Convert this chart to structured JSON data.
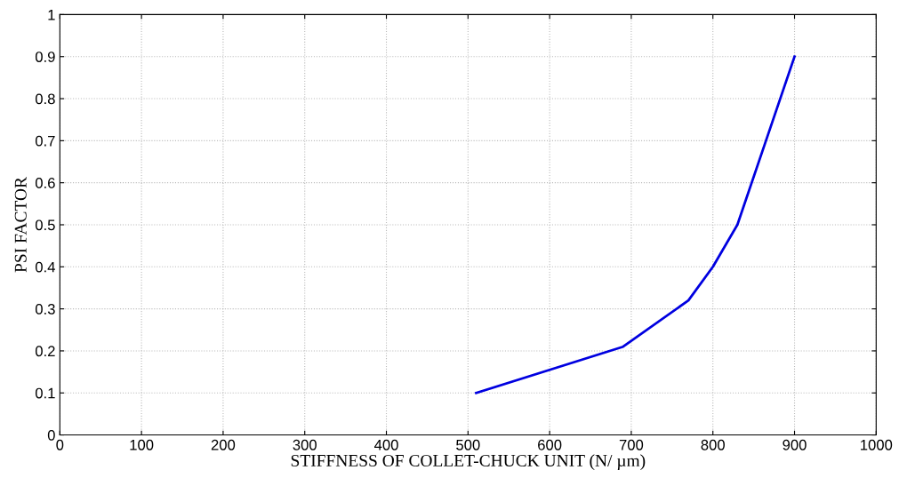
{
  "chart_data": {
    "type": "line",
    "xlabel": "STIFFNESS OF COLLET-CHUCK UNIT (N/ µm)",
    "ylabel": "PSI FACTOR",
    "series": [
      {
        "color": "#0000e0",
        "x": [
          510,
          690,
          770,
          800,
          830,
          865,
          900
        ],
        "values": [
          0.1,
          0.21,
          0.32,
          0.4,
          0.5,
          0.7,
          0.9
        ]
      }
    ],
    "xlim": [
      0,
      1000
    ],
    "xticks": [
      0,
      100,
      200,
      300,
      400,
      500,
      600,
      700,
      800,
      900,
      1000
    ],
    "ylim": [
      0,
      1
    ],
    "yticks": [
      0,
      0.1,
      0.2,
      0.3,
      0.4,
      0.5,
      0.6,
      0.7,
      0.8,
      0.9,
      1
    ],
    "grid": true,
    "line_style": "solid",
    "marker": "none"
  }
}
